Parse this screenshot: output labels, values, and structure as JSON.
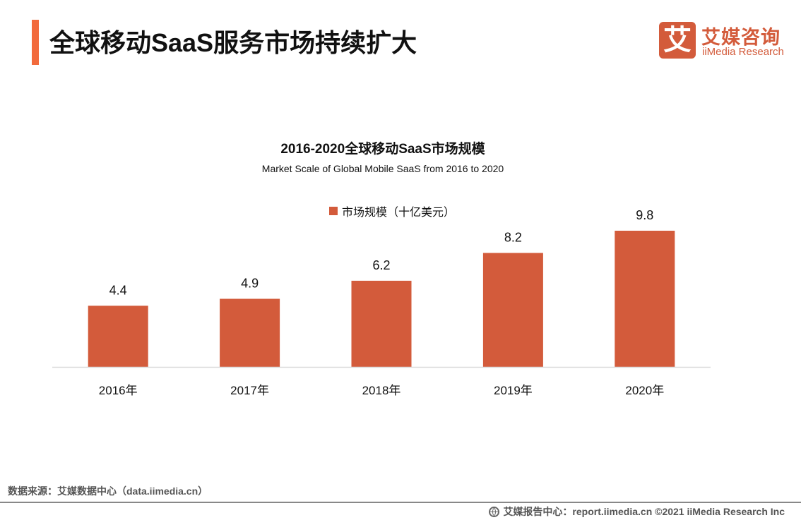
{
  "header": {
    "title": "全球移动SaaS服务市场持续扩大",
    "accent_color": "#f26a3c"
  },
  "logo": {
    "mark": "艾",
    "name_cn": "艾媒咨询",
    "name_en": "iiMedia Research",
    "color": "#d35b3b"
  },
  "chart_data": {
    "type": "bar",
    "title": "2016-2020全球移动SaaS市场规模",
    "subtitle": "Market Scale of Global Mobile SaaS from 2016 to 2020",
    "categories": [
      "2016年",
      "2017年",
      "2018年",
      "2019年",
      "2020年"
    ],
    "series": [
      {
        "name": "市场规模（十亿美元）",
        "values": [
          4.4,
          4.9,
          6.2,
          8.2,
          9.8
        ],
        "labels": [
          "4.4",
          "4.9",
          "6.2",
          "8.2",
          "9.8"
        ],
        "color": "#d35b3b"
      }
    ],
    "xlabel": "",
    "ylabel": "",
    "ylim": [
      0,
      9.8
    ],
    "grid": false,
    "legend_position": "top-center",
    "data_labels": true,
    "y_axis_visible": false
  },
  "footer": {
    "source": "数据来源：艾媒数据中心（data.iimedia.cn）",
    "credit": "艾媒报告中心：report.iimedia.cn ©2021  iiMedia Research  Inc"
  }
}
